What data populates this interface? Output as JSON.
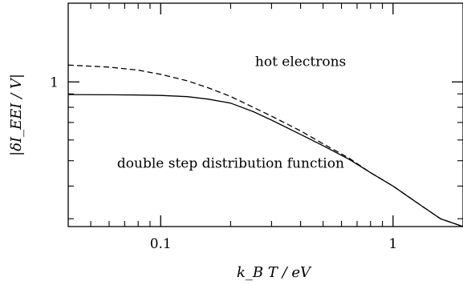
{
  "chart_data": {
    "type": "line",
    "xscale": "log",
    "yscale": "log",
    "xlim": [
      0.04,
      2.0
    ],
    "ylim": [
      0.28,
      2.0
    ],
    "xlabel": "k_B T / eV",
    "ylabel": "|δI_EEI / V|",
    "grid": false,
    "xticks": [
      {
        "value": 0.1,
        "label": "0.1"
      },
      {
        "value": 1,
        "label": "1"
      }
    ],
    "yticks": [
      {
        "value": 1,
        "label": "1"
      }
    ],
    "annotations": [
      {
        "text": "hot electrons",
        "x": 0.4,
        "y": 1.15
      },
      {
        "text": "double step distribution function",
        "x": 0.2,
        "y": 0.47
      }
    ],
    "series": [
      {
        "style": "dashed",
        "x": [
          0.04,
          0.06,
          0.08,
          0.1,
          0.13,
          0.16,
          0.2,
          0.25,
          0.3,
          0.4,
          0.5,
          0.65,
          0.8,
          1.0,
          1.3,
          1.6,
          2.0
        ],
        "y": [
          1.16,
          1.14,
          1.11,
          1.07,
          1.01,
          0.95,
          0.88,
          0.8,
          0.74,
          0.65,
          0.58,
          0.51,
          0.45,
          0.4,
          0.34,
          0.3,
          0.28
        ]
      },
      {
        "style": "solid",
        "x": [
          0.04,
          0.06,
          0.08,
          0.1,
          0.13,
          0.16,
          0.2,
          0.25,
          0.3,
          0.4,
          0.5,
          0.65,
          0.8,
          1.0,
          1.3,
          1.6,
          2.0
        ],
        "y": [
          0.895,
          0.893,
          0.891,
          0.888,
          0.879,
          0.86,
          0.83,
          0.77,
          0.715,
          0.63,
          0.57,
          0.505,
          0.45,
          0.4,
          0.34,
          0.3,
          0.28
        ]
      }
    ]
  }
}
